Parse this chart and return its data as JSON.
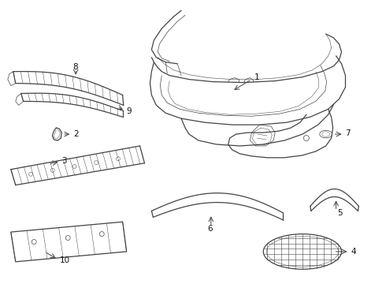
{
  "bg_color": "#ffffff",
  "line_color": "#444444",
  "text_color": "#111111",
  "lw_main": 0.9,
  "lw_thin": 0.5,
  "lw_hatch": 0.35,
  "fontsize": 7.5
}
